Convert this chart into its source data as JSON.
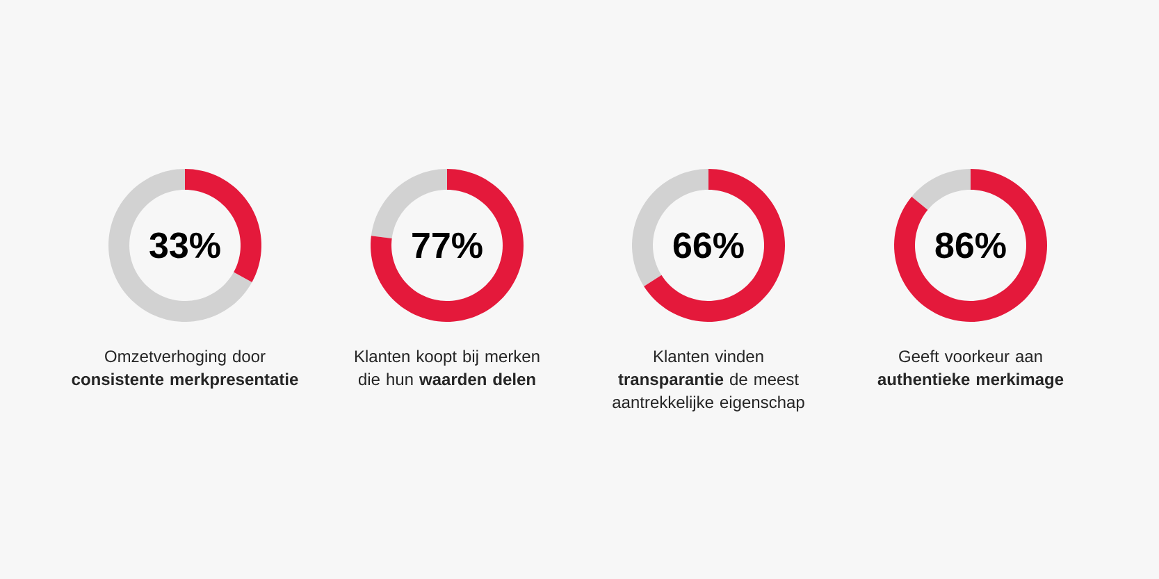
{
  "chart_data": [
    {
      "type": "donut",
      "title": "Omzetverhoging door **consistente merkpresentatie**",
      "categories": [
        null,
        null
      ],
      "values": [
        33,
        67
      ],
      "colors": [
        "#e4193b",
        "#d2d2d2"
      ],
      "annotations": [
        "33%"
      ]
    },
    {
      "type": "donut",
      "title": "Klanten koopt bij merken die hun **waarden delen**",
      "categories": [
        null,
        null
      ],
      "values": [
        77,
        23
      ],
      "colors": [
        "#e4193b",
        "#d2d2d2"
      ],
      "annotations": [
        "77%"
      ]
    },
    {
      "type": "donut",
      "title": "Klanten vinden **transparantie** de meest aantrekkelijke eigenschap",
      "categories": [
        null,
        null
      ],
      "values": [
        66,
        34
      ],
      "colors": [
        "#e4193b",
        "#d2d2d2"
      ],
      "annotations": [
        "66%"
      ]
    },
    {
      "type": "donut",
      "title": "Geeft voorkeur aan **authentieke merkimage**",
      "categories": [
        null,
        null
      ],
      "values": [
        86,
        14
      ],
      "colors": [
        "#e4193b",
        "#d2d2d2"
      ],
      "annotations": [
        "86%"
      ]
    }
  ]
}
